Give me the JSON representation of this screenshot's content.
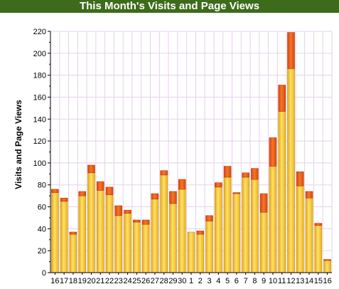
{
  "chart_data": {
    "type": "bar",
    "stacked": true,
    "title": "This Month's Visits and Page Views",
    "ylabel": "Visits and Page Views",
    "xlabel": "",
    "ylim": [
      0,
      220
    ],
    "yticks": [
      0,
      20,
      40,
      60,
      80,
      100,
      120,
      140,
      160,
      180,
      200,
      220
    ],
    "grid": true,
    "categories": [
      "16",
      "17",
      "18",
      "19",
      "20",
      "21",
      "22",
      "23",
      "24",
      "25",
      "26",
      "27",
      "28",
      "29",
      "30",
      "1",
      "2",
      "3",
      "4",
      "5",
      "6",
      "7",
      "8",
      "9",
      "10",
      "11",
      "12",
      "13",
      "14",
      "15",
      "16"
    ],
    "series": [
      {
        "values": [
          73,
          65,
          35,
          70,
          91,
          75,
          71,
          52,
          54,
          46,
          44,
          67,
          89,
          63,
          76,
          37,
          35,
          47,
          78,
          87,
          72,
          87,
          85,
          55,
          97,
          147,
          186,
          79,
          68,
          43,
          11
        ],
        "color": "#f2c21b"
      },
      {
        "values": [
          3,
          3,
          2,
          4,
          7,
          8,
          7,
          9,
          3,
          2,
          4,
          5,
          4,
          11,
          9,
          0,
          3,
          5,
          4,
          10,
          1,
          4,
          10,
          17,
          26,
          24,
          33,
          13,
          6,
          2,
          1
        ],
        "color": "#e8531a"
      }
    ],
    "colors": {
      "title_bg": "#3d6b1c",
      "title_text": "#ffffff",
      "grid": "#e6d0ec"
    }
  }
}
